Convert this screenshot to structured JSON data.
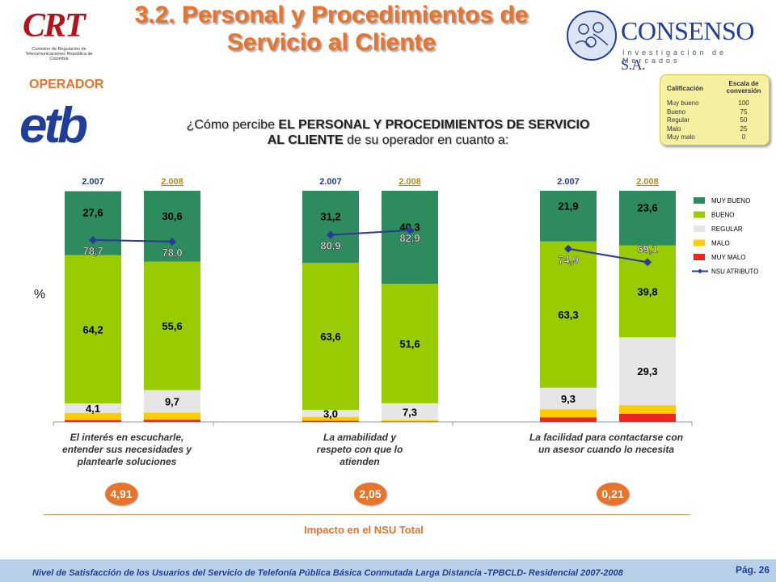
{
  "header": {
    "title_line1": "3.2. Personal y Procedimientos de",
    "title_line2": "Servicio al Cliente",
    "crt_logo_text": "CRT",
    "crt_caption": "Comisión de Regulación de Telecomunicaciones República de Colombia",
    "consenso_name": "CONSENSO",
    "consenso_suffix": "S.A.",
    "consenso_sub": "Investigación de Mercados"
  },
  "operator": {
    "label": "OPERADOR",
    "logo_text": "etb"
  },
  "question": {
    "prefix": "¿Cómo percibe ",
    "bold": "EL PERSONAL Y PROCEDIMIENTOS DE SERVICIO AL CLIENTE",
    "suffix": " de su operador en cuanto a:"
  },
  "scale_box": {
    "col1": "Calificación",
    "col2": "Escala de conversión",
    "rows": [
      {
        "label": "Muy bueno",
        "value": "100"
      },
      {
        "label": "Bueno",
        "value": "75"
      },
      {
        "label": "Regular",
        "value": "50"
      },
      {
        "label": "Malo",
        "value": "25"
      },
      {
        "label": "Muy malo",
        "value": "0"
      }
    ]
  },
  "y_unit": "%",
  "chart_data": {
    "type": "bar",
    "stacked": true,
    "groups": [
      {
        "label": "El interés en escucharle, entender sus necesidades y plantearle soluciones",
        "impact": "4,91",
        "bars": [
          {
            "year": "2.007",
            "muy_malo": 0.8,
            "malo": 3.1,
            "regular": 4.1,
            "bueno": 64.2,
            "muy_bueno": 27.6,
            "nsu": 78.7,
            "labels": {
              "regular": "4,1",
              "bueno": "64,2",
              "muy_bueno": "27,6",
              "nsu": "78,7"
            }
          },
          {
            "year": "2.008",
            "muy_malo": 1.0,
            "malo": 3.1,
            "regular": 9.7,
            "bueno": 55.6,
            "muy_bueno": 30.6,
            "nsu": 78.0,
            "labels": {
              "regular": "9,7",
              "bueno": "55,6",
              "muy_bueno": "30,6",
              "nsu": "78,0"
            }
          }
        ]
      },
      {
        "label": "La amabilidad y respeto con que lo atienden",
        "impact": "2,05",
        "bars": [
          {
            "year": "2.007",
            "muy_malo": 0.5,
            "malo": 1.7,
            "regular": 3.0,
            "bueno": 63.6,
            "muy_bueno": 31.2,
            "nsu": 80.9,
            "labels": {
              "regular": "3,0",
              "bueno": "63,6",
              "muy_bueno": "31,2",
              "nsu": "80,9"
            }
          },
          {
            "year": "2.008",
            "muy_malo": 0.2,
            "malo": 0.6,
            "regular": 7.3,
            "bueno": 51.6,
            "muy_bueno": 40.3,
            "nsu": 82.9,
            "labels": {
              "regular": "7,3",
              "bueno": "51,6",
              "muy_bueno": "40,3",
              "nsu": "82,9"
            }
          }
        ]
      },
      {
        "label": "La facilidad para contactarse con un asesor cuando lo necesita",
        "impact": "0,21",
        "bars": [
          {
            "year": "2.007",
            "muy_malo": 2.0,
            "malo": 3.5,
            "regular": 9.3,
            "bueno": 63.3,
            "muy_bueno": 21.9,
            "nsu": 74.9,
            "labels": {
              "regular": "9,3",
              "bueno": "63,3",
              "muy_bueno": "21,9",
              "nsu": "74,9"
            }
          },
          {
            "year": "2.008",
            "muy_malo": 3.5,
            "malo": 3.8,
            "regular": 29.3,
            "bueno": 39.8,
            "muy_bueno": 23.6,
            "nsu": 69.1,
            "labels": {
              "regular": "29,3",
              "bueno": "39,8",
              "muy_bueno": "23,6",
              "nsu": "69,1"
            }
          }
        ]
      }
    ],
    "legend": [
      "MUY BUENO",
      "BUENO",
      "REGULAR",
      "MALO",
      "MUY MALO",
      "NSU ATRIBUTO"
    ],
    "colors": {
      "muy_bueno": "#2e8b5e",
      "bueno": "#99cc00",
      "regular": "#e6e6e6",
      "malo": "#ffcc00",
      "muy_malo": "#e8281e",
      "nsu": "#2a3a9a"
    },
    "ylim": [
      0,
      100
    ]
  },
  "impact_label": "Impacto en el NSU Total",
  "footer": {
    "text": "Nivel de Satisfacción de los Usuarios del Servicio de Telefonía Pública Básica Conmutada Larga Distancia -TPBCLD- Residencial 2007-2008",
    "page": "Pág. 26"
  }
}
